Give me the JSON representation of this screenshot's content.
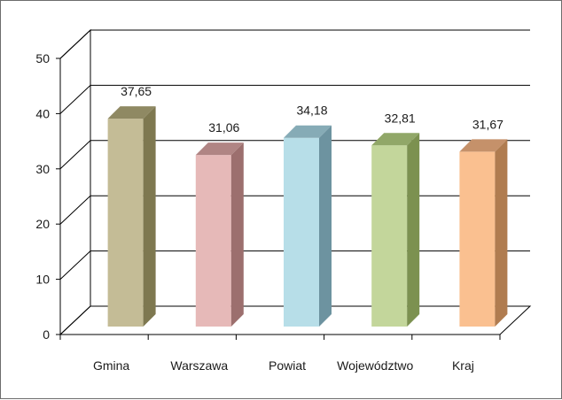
{
  "chart_data": {
    "type": "bar",
    "three_d": true,
    "categories": [
      "Gmina",
      "Warszawa",
      "Powiat",
      "Województwo",
      "Kraj"
    ],
    "values": [
      37.65,
      31.06,
      34.18,
      32.81,
      31.67
    ],
    "data_labels": [
      "37,65",
      "31,06",
      "34,18",
      "32,81",
      "31,67"
    ],
    "y_ticks": [
      "0",
      "10",
      "20",
      "30",
      "40",
      "50"
    ],
    "ylim": [
      0,
      50
    ],
    "grid": true,
    "legend": "none",
    "title": "",
    "xlabel": "",
    "ylabel": "",
    "colors": [
      {
        "front": "#c4bc96",
        "side": "#7e7850",
        "top": "#8f8963"
      },
      {
        "front": "#e6b9b8",
        "side": "#9c6f6e",
        "top": "#b08584"
      },
      {
        "front": "#b7dee8",
        "side": "#6d93a0",
        "top": "#86abb6"
      },
      {
        "front": "#c3d69b",
        "side": "#7c9150",
        "top": "#91a768"
      },
      {
        "front": "#fac090",
        "side": "#b07c50",
        "top": "#c5916a"
      }
    ]
  }
}
